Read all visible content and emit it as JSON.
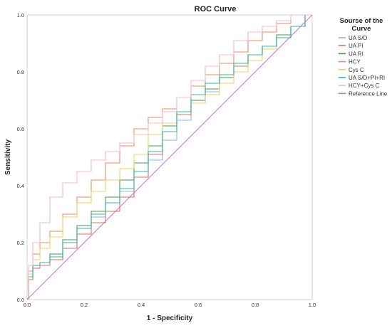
{
  "chart_data": {
    "type": "line",
    "title": "ROC Curve",
    "xlabel": "1 - Specificity",
    "ylabel": "Sensitivity",
    "xlim": [
      0,
      1
    ],
    "ylim": [
      0,
      1
    ],
    "x_ticks": [
      "0.0",
      "0.2",
      "0.4",
      "0.6",
      "0.8",
      "1.0"
    ],
    "y_ticks": [
      "0.0",
      "0.2",
      "0.4",
      "0.6",
      "0.8",
      "1.0"
    ],
    "grid": false,
    "legend": {
      "title_line1": "Sourse of the",
      "title_line2": "Curve",
      "placement": "right"
    },
    "series": [
      {
        "name": "UA S/D",
        "color": "#8fb5e0",
        "x": [
          0,
          0.01,
          0.03,
          0.06,
          0.1,
          0.15,
          0.2,
          0.25,
          0.3,
          0.35,
          0.4,
          0.45,
          0.5,
          0.55,
          0.6,
          0.65,
          0.7,
          0.75,
          0.8,
          0.85,
          0.9,
          0.95,
          1.0
        ],
        "y": [
          0,
          0.08,
          0.12,
          0.13,
          0.15,
          0.2,
          0.25,
          0.29,
          0.34,
          0.38,
          0.43,
          0.49,
          0.56,
          0.63,
          0.69,
          0.73,
          0.78,
          0.82,
          0.86,
          0.89,
          0.92,
          0.96,
          1.0
        ]
      },
      {
        "name": "UA PI",
        "color": "#e0705a",
        "x": [
          0,
          0.01,
          0.03,
          0.06,
          0.1,
          0.15,
          0.2,
          0.25,
          0.3,
          0.35,
          0.4,
          0.45,
          0.5,
          0.55,
          0.6,
          0.65,
          0.7,
          0.75,
          0.8,
          0.85,
          0.9,
          0.95,
          1.0
        ],
        "y": [
          0,
          0.07,
          0.11,
          0.12,
          0.14,
          0.18,
          0.23,
          0.27,
          0.31,
          0.36,
          0.43,
          0.51,
          0.59,
          0.65,
          0.7,
          0.74,
          0.78,
          0.82,
          0.86,
          0.89,
          0.92,
          0.96,
          1.0
        ]
      },
      {
        "name": "UA RI",
        "color": "#4a9a4a",
        "x": [
          0,
          0.01,
          0.03,
          0.06,
          0.1,
          0.15,
          0.2,
          0.25,
          0.3,
          0.35,
          0.4,
          0.45,
          0.5,
          0.55,
          0.6,
          0.65,
          0.7,
          0.75,
          0.8,
          0.85,
          0.9,
          0.95,
          1.0
        ],
        "y": [
          0,
          0.08,
          0.12,
          0.13,
          0.16,
          0.21,
          0.26,
          0.31,
          0.36,
          0.42,
          0.48,
          0.54,
          0.61,
          0.66,
          0.7,
          0.74,
          0.78,
          0.83,
          0.86,
          0.89,
          0.93,
          0.96,
          1.0
        ]
      },
      {
        "name": "HCY",
        "color": "#f08a60",
        "x": [
          0,
          0.01,
          0.03,
          0.06,
          0.1,
          0.15,
          0.2,
          0.25,
          0.3,
          0.35,
          0.4,
          0.45,
          0.5,
          0.55,
          0.6,
          0.65,
          0.7,
          0.75,
          0.8,
          0.85,
          0.9,
          0.95,
          1.0
        ],
        "y": [
          0,
          0.1,
          0.16,
          0.2,
          0.24,
          0.3,
          0.36,
          0.42,
          0.48,
          0.54,
          0.6,
          0.64,
          0.67,
          0.71,
          0.75,
          0.79,
          0.83,
          0.87,
          0.91,
          0.94,
          0.97,
          1.0,
          1.0
        ]
      },
      {
        "name": "Cys C",
        "color": "#f2d060",
        "x": [
          0,
          0.01,
          0.03,
          0.06,
          0.1,
          0.15,
          0.2,
          0.25,
          0.3,
          0.35,
          0.4,
          0.45,
          0.5,
          0.55,
          0.6,
          0.65,
          0.7,
          0.75,
          0.8,
          0.85,
          0.9,
          0.95,
          1.0
        ],
        "y": [
          0,
          0.09,
          0.14,
          0.18,
          0.22,
          0.29,
          0.34,
          0.38,
          0.42,
          0.46,
          0.51,
          0.58,
          0.62,
          0.66,
          0.69,
          0.72,
          0.76,
          0.8,
          0.84,
          0.88,
          0.92,
          0.96,
          1.0
        ]
      },
      {
        "name": "UA S/D+PI+RI",
        "color": "#30b5a8",
        "x": [
          0,
          0.01,
          0.03,
          0.06,
          0.1,
          0.15,
          0.2,
          0.25,
          0.3,
          0.35,
          0.4,
          0.45,
          0.5,
          0.55,
          0.6,
          0.65,
          0.7,
          0.75,
          0.8,
          0.85,
          0.9,
          0.95,
          1.0
        ],
        "y": [
          0,
          0.08,
          0.12,
          0.13,
          0.15,
          0.2,
          0.25,
          0.3,
          0.34,
          0.39,
          0.45,
          0.52,
          0.59,
          0.66,
          0.72,
          0.76,
          0.79,
          0.83,
          0.86,
          0.89,
          0.92,
          0.96,
          1.0
        ]
      },
      {
        "name": "HCY+Cys C",
        "color": "#f5b8cc",
        "x": [
          0,
          0.01,
          0.03,
          0.06,
          0.1,
          0.15,
          0.2,
          0.25,
          0.3,
          0.35,
          0.4,
          0.45,
          0.5,
          0.55,
          0.6,
          0.65,
          0.7,
          0.75,
          0.8,
          0.85,
          0.9,
          0.95,
          1.0
        ],
        "y": [
          0,
          0.12,
          0.2,
          0.27,
          0.36,
          0.41,
          0.45,
          0.49,
          0.52,
          0.55,
          0.58,
          0.62,
          0.66,
          0.71,
          0.77,
          0.82,
          0.86,
          0.91,
          0.94,
          0.96,
          0.98,
          1.0,
          1.0
        ]
      },
      {
        "name": "Reference Line",
        "color": "#c070e0",
        "x": [
          0,
          1
        ],
        "y": [
          0,
          1
        ]
      }
    ]
  }
}
